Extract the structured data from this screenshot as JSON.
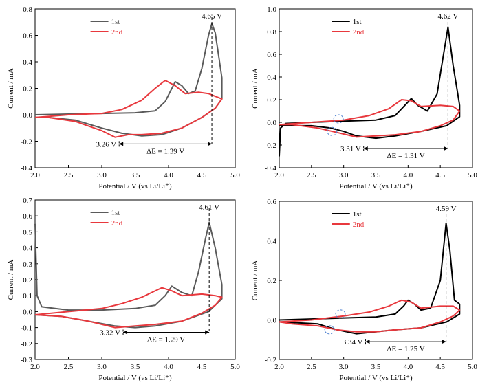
{
  "chart_data": [
    {
      "type": "line",
      "xlabel": "Potential / V (vs Li/Li⁺)",
      "ylabel": "Current / mA",
      "xlim": [
        2.0,
        5.0
      ],
      "ylim": [
        -0.4,
        0.8
      ],
      "xticks": [
        "2.0",
        "2.5",
        "3.0",
        "3.5",
        "4.0",
        "4.5",
        "5.0"
      ],
      "yticks": [
        "-0.4",
        "-0.2",
        "0.0",
        "0.2",
        "0.4",
        "0.6",
        "0.8"
      ],
      "legend": {
        "position": "top-left",
        "entries": [
          "1st",
          "2nd"
        ]
      },
      "colors": [
        "#5a5a5a",
        "#e8383d"
      ],
      "series": [
        {
          "name": "1st",
          "points": [
            [
              2.0,
              0.0
            ],
            [
              2.5,
              0.005
            ],
            [
              3.0,
              0.01
            ],
            [
              3.5,
              0.015
            ],
            [
              3.8,
              0.03
            ],
            [
              3.95,
              0.1
            ],
            [
              4.1,
              0.25
            ],
            [
              4.2,
              0.22
            ],
            [
              4.3,
              0.16
            ],
            [
              4.4,
              0.18
            ],
            [
              4.5,
              0.35
            ],
            [
              4.6,
              0.6
            ],
            [
              4.65,
              0.69
            ],
            [
              4.7,
              0.62
            ],
            [
              4.75,
              0.45
            ],
            [
              4.8,
              0.28
            ],
            [
              4.8,
              0.12
            ],
            [
              4.7,
              0.05
            ],
            [
              4.5,
              -0.02
            ],
            [
              4.2,
              -0.1
            ],
            [
              3.9,
              -0.15
            ],
            [
              3.6,
              -0.16
            ],
            [
              3.3,
              -0.14
            ],
            [
              3.0,
              -0.1
            ],
            [
              2.6,
              -0.04
            ],
            [
              2.2,
              -0.02
            ],
            [
              2.0,
              -0.02
            ]
          ]
        },
        {
          "name": "2nd",
          "points": [
            [
              2.0,
              -0.02
            ],
            [
              2.5,
              0.0
            ],
            [
              3.0,
              0.01
            ],
            [
              3.3,
              0.04
            ],
            [
              3.6,
              0.11
            ],
            [
              3.8,
              0.2
            ],
            [
              3.95,
              0.26
            ],
            [
              4.1,
              0.22
            ],
            [
              4.25,
              0.16
            ],
            [
              4.45,
              0.17
            ],
            [
              4.6,
              0.16
            ],
            [
              4.8,
              0.12
            ],
            [
              4.7,
              0.05
            ],
            [
              4.5,
              -0.02
            ],
            [
              4.2,
              -0.1
            ],
            [
              3.9,
              -0.14
            ],
            [
              3.6,
              -0.15
            ],
            [
              3.4,
              -0.15
            ],
            [
              3.2,
              -0.17
            ],
            [
              3.0,
              -0.12
            ],
            [
              2.6,
              -0.05
            ],
            [
              2.2,
              -0.02
            ],
            [
              2.0,
              -0.02
            ]
          ]
        }
      ],
      "peak": {
        "x": 4.65,
        "label": "4.65 V"
      },
      "low": {
        "x": 3.26,
        "label": "3.26 V"
      },
      "delta": {
        "label": "ΔE = 1.39 V",
        "y": -0.22
      },
      "circles": []
    },
    {
      "type": "line",
      "xlabel": "Potential / V (vs Li/Li⁺)",
      "ylabel": "Current / mA",
      "xlim": [
        2.0,
        5.0
      ],
      "ylim": [
        -0.4,
        1.0
      ],
      "xticks": [
        "2.0",
        "2.5",
        "3.0",
        "3.5",
        "4.0",
        "4.5",
        "5.0"
      ],
      "yticks": [
        "-0.4",
        "-0.2",
        "0.0",
        "0.2",
        "0.4",
        "0.6",
        "0.8",
        "1.0"
      ],
      "legend": {
        "position": "top-left",
        "entries": [
          "1st",
          "2nd"
        ]
      },
      "colors": [
        "#000000",
        "#e8383d"
      ],
      "series": [
        {
          "name": "1st",
          "points": [
            [
              2.0,
              -0.3
            ],
            [
              2.02,
              -0.05
            ],
            [
              2.1,
              -0.01
            ],
            [
              2.5,
              0.0
            ],
            [
              3.0,
              0.01
            ],
            [
              3.5,
              0.02
            ],
            [
              3.8,
              0.06
            ],
            [
              3.95,
              0.15
            ],
            [
              4.05,
              0.21
            ],
            [
              4.15,
              0.15
            ],
            [
              4.3,
              0.1
            ],
            [
              4.45,
              0.25
            ],
            [
              4.55,
              0.6
            ],
            [
              4.62,
              0.84
            ],
            [
              4.7,
              0.5
            ],
            [
              4.8,
              0.15
            ],
            [
              4.8,
              0.05
            ],
            [
              4.6,
              -0.03
            ],
            [
              4.2,
              -0.08
            ],
            [
              3.8,
              -0.12
            ],
            [
              3.5,
              -0.14
            ],
            [
              3.2,
              -0.12
            ],
            [
              3.0,
              -0.08
            ],
            [
              2.8,
              -0.05
            ],
            [
              2.5,
              -0.03
            ],
            [
              2.0,
              -0.03
            ]
          ]
        },
        {
          "name": "2nd",
          "points": [
            [
              2.0,
              -0.02
            ],
            [
              2.5,
              0.0
            ],
            [
              3.0,
              0.02
            ],
            [
              3.4,
              0.06
            ],
            [
              3.7,
              0.12
            ],
            [
              3.9,
              0.2
            ],
            [
              4.05,
              0.19
            ],
            [
              4.2,
              0.14
            ],
            [
              4.5,
              0.15
            ],
            [
              4.7,
              0.14
            ],
            [
              4.8,
              0.1
            ],
            [
              4.7,
              0.02
            ],
            [
              4.5,
              -0.03
            ],
            [
              4.2,
              -0.08
            ],
            [
              3.8,
              -0.11
            ],
            [
              3.5,
              -0.12
            ],
            [
              3.2,
              -0.13
            ],
            [
              2.9,
              -0.09
            ],
            [
              2.6,
              -0.05
            ],
            [
              2.2,
              -0.02
            ],
            [
              2.0,
              -0.02
            ]
          ]
        }
      ],
      "peak": {
        "x": 4.62,
        "label": "4.62 V"
      },
      "low": {
        "x": 3.31,
        "label": "3.31 V"
      },
      "delta": {
        "label": "ΔE = 1.31 V",
        "y": -0.23
      },
      "circles": [
        {
          "x": 2.92,
          "y": 0.03
        },
        {
          "x": 2.82,
          "y": -0.08
        }
      ]
    },
    {
      "type": "line",
      "xlabel": "Potential / V (vs Li/Li⁺)",
      "ylabel": "Current / mA",
      "xlim": [
        2.0,
        5.0
      ],
      "ylim": [
        -0.3,
        0.7
      ],
      "xticks": [
        "2.0",
        "2.5",
        "3.0",
        "3.5",
        "4.0",
        "4.5",
        "5.0"
      ],
      "yticks": [
        "-0.3",
        "-0.2",
        "-0.1",
        "0.0",
        "0.1",
        "0.2",
        "0.3",
        "0.4",
        "0.5",
        "0.6",
        "0.7"
      ],
      "legend": {
        "position": "top-left",
        "entries": [
          "1st",
          "2nd"
        ]
      },
      "colors": [
        "#5a5a5a",
        "#e8383d"
      ],
      "series": [
        {
          "name": "1st",
          "points": [
            [
              2.0,
              0.55
            ],
            [
              2.03,
              0.1
            ],
            [
              2.1,
              0.03
            ],
            [
              2.5,
              0.01
            ],
            [
              3.0,
              0.01
            ],
            [
              3.5,
              0.02
            ],
            [
              3.8,
              0.04
            ],
            [
              3.95,
              0.1
            ],
            [
              4.05,
              0.16
            ],
            [
              4.2,
              0.12
            ],
            [
              4.35,
              0.1
            ],
            [
              4.45,
              0.25
            ],
            [
              4.55,
              0.45
            ],
            [
              4.61,
              0.56
            ],
            [
              4.7,
              0.4
            ],
            [
              4.8,
              0.17
            ],
            [
              4.8,
              0.08
            ],
            [
              4.6,
              0.0
            ],
            [
              4.2,
              -0.06
            ],
            [
              3.8,
              -0.09
            ],
            [
              3.5,
              -0.1
            ],
            [
              3.2,
              -0.09
            ],
            [
              2.8,
              -0.06
            ],
            [
              2.4,
              -0.03
            ],
            [
              2.0,
              -0.02
            ]
          ]
        },
        {
          "name": "2nd",
          "points": [
            [
              2.0,
              -0.02
            ],
            [
              2.5,
              0.0
            ],
            [
              3.0,
              0.02
            ],
            [
              3.3,
              0.05
            ],
            [
              3.6,
              0.09
            ],
            [
              3.9,
              0.15
            ],
            [
              4.05,
              0.13
            ],
            [
              4.2,
              0.1
            ],
            [
              4.5,
              0.11
            ],
            [
              4.7,
              0.1
            ],
            [
              4.8,
              0.09
            ],
            [
              4.7,
              0.04
            ],
            [
              4.5,
              -0.01
            ],
            [
              4.2,
              -0.06
            ],
            [
              3.8,
              -0.08
            ],
            [
              3.5,
              -0.09
            ],
            [
              3.2,
              -0.1
            ],
            [
              2.8,
              -0.06
            ],
            [
              2.4,
              -0.03
            ],
            [
              2.0,
              -0.02
            ]
          ]
        }
      ],
      "peak": {
        "x": 4.61,
        "label": "4.61 V"
      },
      "low": {
        "x": 3.32,
        "label": "3.32 V"
      },
      "delta": {
        "label": "ΔE = 1.29 V",
        "y": -0.13
      },
      "circles": []
    },
    {
      "type": "line",
      "xlabel": "Potential / V (vs Li/Li⁺)",
      "ylabel": "Current / mA",
      "xlim": [
        2.0,
        5.0
      ],
      "ylim": [
        -0.2,
        0.6
      ],
      "xticks": [
        "2.0",
        "2.5",
        "3.0",
        "3.5",
        "4.0",
        "4.5",
        "5.0"
      ],
      "yticks": [
        "-0.2",
        "0.0",
        "0.2",
        "0.4",
        "0.6"
      ],
      "legend": {
        "position": "top-left",
        "entries": [
          "1st",
          "2nd"
        ]
      },
      "colors": [
        "#000000",
        "#e8383d"
      ],
      "series": [
        {
          "name": "1st",
          "points": [
            [
              2.0,
              0.0
            ],
            [
              2.5,
              0.005
            ],
            [
              3.0,
              0.01
            ],
            [
              3.5,
              0.015
            ],
            [
              3.8,
              0.03
            ],
            [
              3.93,
              0.07
            ],
            [
              4.0,
              0.1
            ],
            [
              4.1,
              0.08
            ],
            [
              4.2,
              0.05
            ],
            [
              4.35,
              0.06
            ],
            [
              4.5,
              0.2
            ],
            [
              4.59,
              0.49
            ],
            [
              4.65,
              0.35
            ],
            [
              4.72,
              0.1
            ],
            [
              4.8,
              0.08
            ],
            [
              4.8,
              0.03
            ],
            [
              4.6,
              -0.01
            ],
            [
              4.2,
              -0.04
            ],
            [
              3.8,
              -0.05
            ],
            [
              3.5,
              -0.06
            ],
            [
              3.2,
              -0.07
            ],
            [
              2.9,
              -0.05
            ],
            [
              2.6,
              -0.02
            ],
            [
              2.0,
              -0.01
            ]
          ]
        },
        {
          "name": "2nd",
          "points": [
            [
              2.0,
              -0.01
            ],
            [
              2.5,
              0.0
            ],
            [
              3.0,
              0.02
            ],
            [
              3.4,
              0.04
            ],
            [
              3.7,
              0.07
            ],
            [
              3.9,
              0.1
            ],
            [
              4.05,
              0.09
            ],
            [
              4.2,
              0.06
            ],
            [
              4.5,
              0.07
            ],
            [
              4.7,
              0.07
            ],
            [
              4.8,
              0.05
            ],
            [
              4.7,
              0.02
            ],
            [
              4.5,
              -0.01
            ],
            [
              4.2,
              -0.04
            ],
            [
              3.8,
              -0.05
            ],
            [
              3.5,
              -0.06
            ],
            [
              3.2,
              -0.06
            ],
            [
              2.9,
              -0.05
            ],
            [
              2.6,
              -0.03
            ],
            [
              2.2,
              -0.02
            ],
            [
              2.0,
              -0.01
            ]
          ]
        }
      ],
      "peak": {
        "x": 4.59,
        "label": "4.59 V"
      },
      "low": {
        "x": 3.34,
        "label": "3.34 V"
      },
      "delta": {
        "label": "ΔE = 1.25 V",
        "y": -0.11
      },
      "circles": [
        {
          "x": 2.95,
          "y": 0.03
        },
        {
          "x": 2.78,
          "y": -0.05
        }
      ]
    }
  ]
}
